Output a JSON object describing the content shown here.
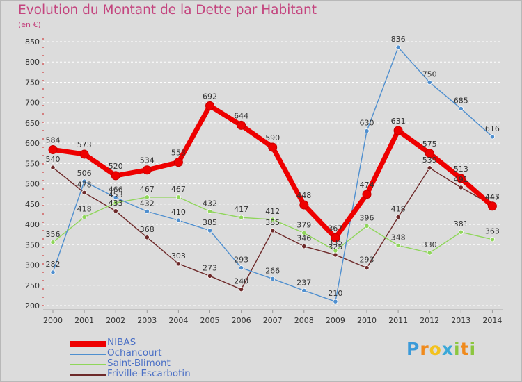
{
  "title": "Evolution du Montant de la Dette par Habitant",
  "subtitle": "(en €)",
  "logo_text": "Proxiti",
  "chart_data": {
    "type": "line",
    "title": "Evolution du Montant de la Dette par Habitant",
    "ylabel": "(en €)",
    "xlabel": "",
    "ylim": [
      200,
      850
    ],
    "y_ticks": [
      200,
      250,
      300,
      350,
      400,
      450,
      500,
      550,
      600,
      650,
      700,
      750,
      800,
      850
    ],
    "categories": [
      "2000",
      "2001",
      "2002",
      "2003",
      "2004",
      "2005",
      "2006",
      "2007",
      "2008",
      "2009",
      "2010",
      "2011",
      "2012",
      "2013",
      "2014"
    ],
    "grid": "horizontal dashed",
    "legend_position": "bottom-left",
    "series": [
      {
        "name": "NIBAS",
        "color": "#ee0000",
        "values": [
          584,
          573,
          520,
          534,
          553,
          692,
          644,
          590,
          448,
          367,
          474,
          631,
          575,
          513,
          445
        ]
      },
      {
        "name": "Ochancourt",
        "color": "#4f8fcf",
        "values": [
          282,
          506,
          466,
          432,
          410,
          385,
          293,
          266,
          237,
          210,
          630,
          836,
          750,
          685,
          616
        ]
      },
      {
        "name": "Saint-Blimont",
        "color": "#8fd65a",
        "values": [
          356,
          418,
          453,
          467,
          467,
          432,
          417,
          412,
          379,
          335,
          396,
          348,
          330,
          381,
          363
        ]
      },
      {
        "name": "Friville-Escarbotin",
        "color": "#6e2a2a",
        "values": [
          540,
          478,
          433,
          368,
          303,
          273,
          240,
          385,
          346,
          325,
          293,
          418,
          539,
          491,
          447
        ]
      }
    ]
  }
}
